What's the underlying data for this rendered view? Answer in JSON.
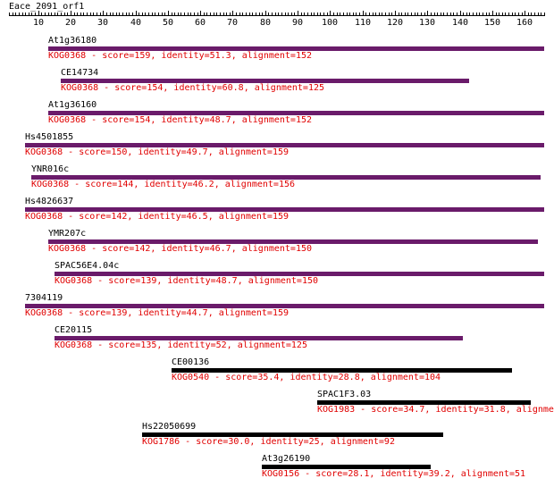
{
  "query_name": "Eace_2091_orf1",
  "axis": {
    "min": 1,
    "max": 166,
    "labels": [
      10,
      20,
      30,
      40,
      50,
      60,
      70,
      80,
      90,
      100,
      110,
      120,
      130,
      140,
      150,
      160
    ]
  },
  "colors": {
    "kog0368": "#6a1b6a",
    "other": "#000000",
    "hit_text": "#e00000"
  },
  "hits": [
    {
      "name": "At1g36180",
      "kog": "KOG0368",
      "score": "159",
      "identity": "51.3",
      "alignment": "152",
      "start": 13,
      "end": 166
    },
    {
      "name": "CE14734",
      "kog": "KOG0368",
      "score": "154",
      "identity": "60.8",
      "alignment": "125",
      "start": 17,
      "end": 143
    },
    {
      "name": "At1g36160",
      "kog": "KOG0368",
      "score": "154",
      "identity": "48.7",
      "alignment": "152",
      "start": 13,
      "end": 166
    },
    {
      "name": "Hs4501855",
      "kog": "KOG0368",
      "score": "150",
      "identity": "49.7",
      "alignment": "159",
      "start": 6,
      "end": 166
    },
    {
      "name": "YNR016c",
      "kog": "KOG0368",
      "score": "144",
      "identity": "46.2",
      "alignment": "156",
      "start": 8,
      "end": 165
    },
    {
      "name": "Hs4826637",
      "kog": "KOG0368",
      "score": "142",
      "identity": "46.5",
      "alignment": "159",
      "start": 6,
      "end": 166
    },
    {
      "name": "YMR207c",
      "kog": "KOG0368",
      "score": "142",
      "identity": "46.7",
      "alignment": "150",
      "start": 13,
      "end": 164
    },
    {
      "name": "SPAC56E4.04c",
      "kog": "KOG0368",
      "score": "139",
      "identity": "48.7",
      "alignment": "150",
      "start": 15,
      "end": 166
    },
    {
      "name": "7304119",
      "kog": "KOG0368",
      "score": "139",
      "identity": "44.7",
      "alignment": "159",
      "start": 6,
      "end": 166
    },
    {
      "name": "CE20115",
      "kog": "KOG0368",
      "score": "135",
      "identity": "52",
      "alignment": "125",
      "start": 15,
      "end": 141
    },
    {
      "name": "CE00136",
      "kog": "KOG0540",
      "score": "35.4",
      "identity": "28.8",
      "alignment": "104",
      "start": 51,
      "end": 156
    },
    {
      "name": "SPAC1F3.03",
      "kog": "KOG1983",
      "score": "34.7",
      "identity": "31.8",
      "alignment": "",
      "start": 96,
      "end": 162
    },
    {
      "name": "Hs22050699",
      "kog": "KOG1786",
      "score": "30.0",
      "identity": "25",
      "alignment": "92",
      "start": 42,
      "end": 135
    },
    {
      "name": "At3g26190",
      "kog": "KOG0156",
      "score": "28.1",
      "identity": "39.2",
      "alignment": "51",
      "start": 79,
      "end": 131
    }
  ]
}
